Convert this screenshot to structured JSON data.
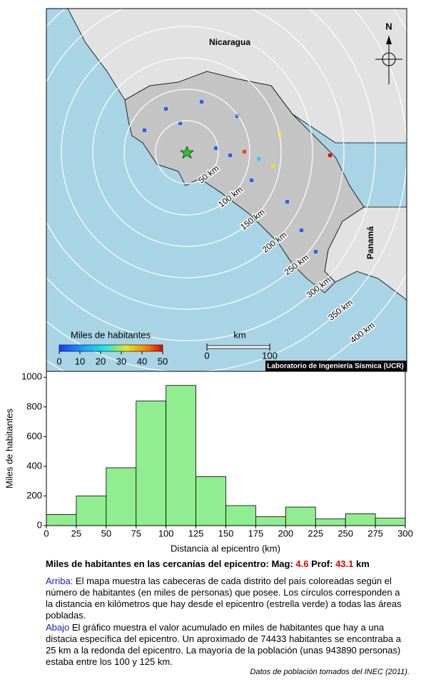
{
  "chart_data": {
    "type": "histogram",
    "bins": [
      0,
      25,
      50,
      75,
      100,
      125,
      150,
      175,
      200,
      225,
      250,
      275,
      300
    ],
    "values": [
      75,
      200,
      390,
      840,
      945,
      330,
      135,
      60,
      125,
      45,
      80,
      50
    ],
    "color": "#90ee90",
    "xlim": [
      0,
      300
    ],
    "ylim": [
      0,
      1040
    ],
    "xticks": [
      0,
      25,
      50,
      75,
      100,
      125,
      150,
      175,
      200,
      225,
      250,
      275,
      300
    ],
    "yticks": [
      0,
      200,
      400,
      600,
      800,
      1000
    ],
    "xlabel": "Distancia al epicentro (km)",
    "ylabel": "Miles de habitantes"
  },
  "map": {
    "north": "N",
    "countries": [
      "Nicaragua",
      "Panamá"
    ],
    "rings": [
      {
        "radius": 50,
        "label": "50 km"
      },
      {
        "radius": 100,
        "label": "100 km"
      },
      {
        "radius": 150,
        "label": "150 km"
      },
      {
        "radius": 200,
        "label": "200 km"
      },
      {
        "radius": 250,
        "label": "250 km"
      },
      {
        "radius": 300,
        "label": "300 km"
      },
      {
        "radius": 350,
        "label": "350 km"
      },
      {
        "radius": 400,
        "label": "400 km"
      }
    ],
    "legend": {
      "title": "Miles de habitantes",
      "lim": [
        0,
        50
      ],
      "ticks": [
        0,
        10,
        20,
        30,
        40,
        50
      ]
    },
    "scale": {
      "label": "km",
      "lim": [
        0,
        100
      ],
      "ticks": [
        0,
        100
      ]
    },
    "credit": "Laboratorio de Ingeniería Sísmica (UCR)"
  },
  "caption": {
    "text": "Miles de habitantes en las cercanías del epicentro: Mag:",
    "mag": "4.6",
    "prof_label": "Prof:",
    "prof": "43.1",
    "unit": "km"
  },
  "paragraphs": [
    {
      "lead": "Arriba:",
      "text": "El mapa muestra las cabeceras de cada distrito del país coloreadas según el número de habitantes (en miles de personas) que posee.  Los círculos corresponden a la distancia en kilómetros que hay desde el epicentro (estrella verde) a todas las áreas pobladas."
    },
    {
      "lead": "Abajo",
      "text": "El gráfico muestra el valor acumulado en miles de habitantes que hay a una distacia específica del epicentro.  Un aproximado de 74433 habitantes se encontraba a 25 km a la redonda del epicentro.  La mayoría de la población (unas 943890 personas) estaba entre los 100 y 125 km."
    }
  ],
  "source": "Datos de población tomados del INEC (2011)."
}
